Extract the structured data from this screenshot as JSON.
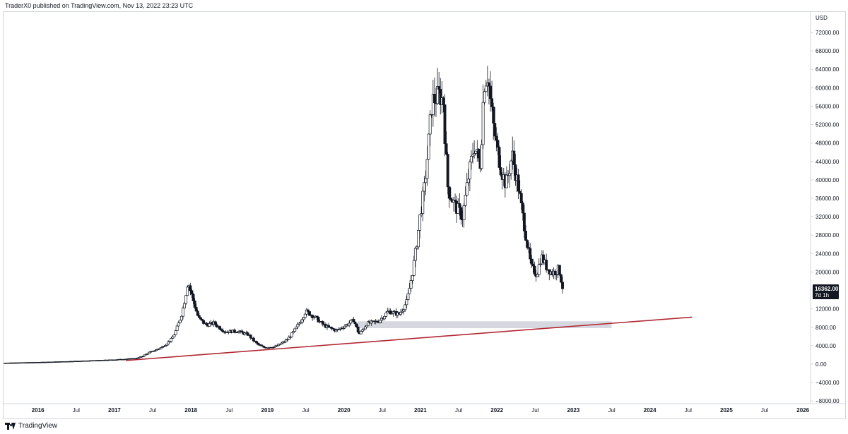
{
  "header": {
    "text": "TraderX0 published on TradingView.com, Nov 13, 2022 23:23 UTC"
  },
  "footer": {
    "text": "TradingView"
  },
  "chart_data": {
    "type": "candlestick",
    "currency": "USD",
    "last_price": {
      "label": "16362.00",
      "countdown": "7d 1h",
      "value": 16362
    },
    "ylim": [
      -8000,
      74000
    ],
    "y_ticks": [
      "72000.00",
      "68000.00",
      "64000.00",
      "60000.00",
      "56000.00",
      "52000.00",
      "48000.00",
      "44000.00",
      "40000.00",
      "36000.00",
      "32000.00",
      "28000.00",
      "24000.00",
      "20000.00",
      "12000.00",
      "8000.00",
      "4000.00",
      "0.00",
      "−4000.00",
      "−8000.00"
    ],
    "y_tick_values": [
      72000,
      68000,
      64000,
      60000,
      56000,
      52000,
      48000,
      44000,
      40000,
      36000,
      32000,
      28000,
      24000,
      20000,
      12000,
      8000,
      4000,
      0,
      -4000,
      -8000
    ],
    "xlim": [
      2015.55,
      2026.1
    ],
    "x_ticks": [
      {
        "label": "2016",
        "t": 2016.0,
        "year": true
      },
      {
        "label": "Jul",
        "t": 2016.5,
        "year": false
      },
      {
        "label": "2017",
        "t": 2017.0,
        "year": true
      },
      {
        "label": "Jul",
        "t": 2017.5,
        "year": false
      },
      {
        "label": "2018",
        "t": 2018.0,
        "year": true
      },
      {
        "label": "Jul",
        "t": 2018.5,
        "year": false
      },
      {
        "label": "2019",
        "t": 2019.0,
        "year": true
      },
      {
        "label": "Jul",
        "t": 2019.5,
        "year": false
      },
      {
        "label": "2020",
        "t": 2020.0,
        "year": true
      },
      {
        "label": "Jul",
        "t": 2020.5,
        "year": false
      },
      {
        "label": "2021",
        "t": 2021.0,
        "year": true
      },
      {
        "label": "Jul",
        "t": 2021.5,
        "year": false
      },
      {
        "label": "2022",
        "t": 2022.0,
        "year": true
      },
      {
        "label": "Jul",
        "t": 2022.5,
        "year": false
      },
      {
        "label": "2023",
        "t": 2023.0,
        "year": true
      },
      {
        "label": "Jul",
        "t": 2023.5,
        "year": false
      },
      {
        "label": "2024",
        "t": 2024.0,
        "year": true
      },
      {
        "label": "Jul",
        "t": 2024.5,
        "year": false
      },
      {
        "label": "2025",
        "t": 2025.0,
        "year": true
      },
      {
        "label": "Jul",
        "t": 2025.5,
        "year": false
      },
      {
        "label": "2026",
        "t": 2026.0,
        "year": true
      }
    ],
    "trendline": {
      "color": "#b22833",
      "start": {
        "t": 2017.15,
        "price": 800
      },
      "end": {
        "t": 2024.55,
        "price": 10200
      }
    },
    "zone": {
      "color": "#d1d4dc",
      "t_start": 2020.18,
      "t_end": 2023.5,
      "price_low": 7800,
      "price_high": 9300
    },
    "anchors": [
      [
        2015.55,
        250
      ],
      [
        2016.0,
        400
      ],
      [
        2016.5,
        650
      ],
      [
        2017.0,
        950
      ],
      [
        2017.3,
        1300
      ],
      [
        2017.45,
        2500
      ],
      [
        2017.6,
        3500
      ],
      [
        2017.75,
        5500
      ],
      [
        2017.88,
        11000
      ],
      [
        2017.96,
        18000
      ],
      [
        2018.02,
        14500
      ],
      [
        2018.1,
        10000
      ],
      [
        2018.2,
        8500
      ],
      [
        2018.3,
        8900
      ],
      [
        2018.45,
        7000
      ],
      [
        2018.6,
        7200
      ],
      [
        2018.75,
        6400
      ],
      [
        2018.88,
        4200
      ],
      [
        2018.96,
        3600
      ],
      [
        2019.1,
        3800
      ],
      [
        2019.25,
        5200
      ],
      [
        2019.4,
        8500
      ],
      [
        2019.5,
        11500
      ],
      [
        2019.62,
        10200
      ],
      [
        2019.75,
        8300
      ],
      [
        2019.9,
        7300
      ],
      [
        2020.05,
        8700
      ],
      [
        2020.13,
        9600
      ],
      [
        2020.2,
        6500
      ],
      [
        2020.3,
        8800
      ],
      [
        2020.45,
        9300
      ],
      [
        2020.58,
        11500
      ],
      [
        2020.72,
        10800
      ],
      [
        2020.82,
        13500
      ],
      [
        2020.88,
        18500
      ],
      [
        2020.95,
        26000
      ],
      [
        2021.0,
        33000
      ],
      [
        2021.05,
        38000
      ],
      [
        2021.1,
        47000
      ],
      [
        2021.15,
        57000
      ],
      [
        2021.25,
        58500
      ],
      [
        2021.3,
        57000
      ],
      [
        2021.36,
        38000
      ],
      [
        2021.45,
        34500
      ],
      [
        2021.55,
        32000
      ],
      [
        2021.62,
        40000
      ],
      [
        2021.7,
        47500
      ],
      [
        2021.78,
        43500
      ],
      [
        2021.83,
        61000
      ],
      [
        2021.88,
        63000
      ],
      [
        2021.95,
        52000
      ],
      [
        2022.0,
        47000
      ],
      [
        2022.06,
        42000
      ],
      [
        2022.12,
        39000
      ],
      [
        2022.2,
        45500
      ],
      [
        2022.28,
        38500
      ],
      [
        2022.36,
        30000
      ],
      [
        2022.45,
        21000
      ],
      [
        2022.52,
        19500
      ],
      [
        2022.58,
        23500
      ],
      [
        2022.65,
        21000
      ],
      [
        2022.72,
        19800
      ],
      [
        2022.78,
        20200
      ],
      [
        2022.81,
        20800
      ],
      [
        2022.865,
        16362
      ]
    ]
  }
}
